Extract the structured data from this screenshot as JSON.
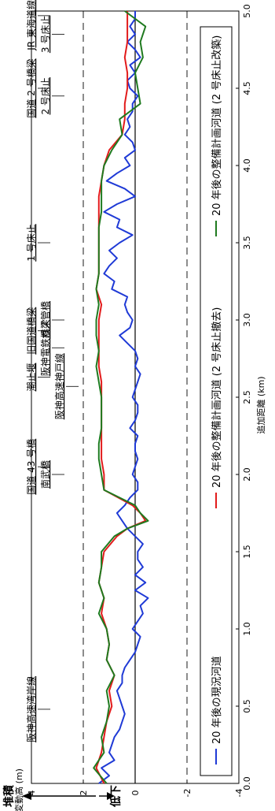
{
  "chart_data": {
    "type": "line",
    "xlabel": "追加距離 (km)",
    "ylabel": "河床変動高 (m)",
    "ylabel_glyphs": [
      "河",
      "床",
      "変",
      "動",
      "高",
      "(m)"
    ],
    "y_top_label": "堆積",
    "y_bottom_label": "低下",
    "xlim": [
      0.0,
      5.0
    ],
    "ylim": [
      -4,
      4
    ],
    "x_ticks": [
      "0.0",
      "0.5",
      "1.0",
      "1.5",
      "2.0",
      "2.5",
      "3.0",
      "3.5",
      "4.0",
      "4.5",
      "5.0"
    ],
    "y_ticks": [
      "4",
      "2",
      "0",
      "-2",
      "-4"
    ],
    "x_tick_values": [
      0,
      0.5,
      1,
      1.5,
      2,
      2.5,
      3,
      3.5,
      4,
      4.5,
      5
    ],
    "y_tick_values": [
      4,
      2,
      0,
      -2,
      -4
    ],
    "dashed_y": [
      2,
      -2
    ],
    "zero_line": 0,
    "colors": {
      "blue": "#1f3ad6",
      "red": "#e21b1b",
      "green": "#1f7a1f"
    },
    "series": [
      {
        "name": "20 年後の現況河道",
        "color": "blue",
        "x": [
          0,
          0.05,
          0.1,
          0.15,
          0.2,
          0.25,
          0.3,
          0.35,
          0.4,
          0.45,
          0.5,
          0.55,
          0.6,
          0.65,
          0.7,
          0.75,
          0.8,
          0.85,
          0.9,
          0.95,
          1.0,
          1.05,
          1.1,
          1.15,
          1.2,
          1.25,
          1.3,
          1.35,
          1.4,
          1.45,
          1.5,
          1.55,
          1.6,
          1.65,
          1.7,
          1.75,
          1.8,
          1.85,
          1.9,
          1.95,
          2.0,
          2.05,
          2.1,
          2.15,
          2.2,
          2.25,
          2.3,
          2.35,
          2.4,
          2.45,
          2.5,
          2.55,
          2.6,
          2.65,
          2.7,
          2.75,
          2.8,
          2.85,
          2.9,
          2.95,
          3.0,
          3.05,
          3.1,
          3.15,
          3.2,
          3.25,
          3.3,
          3.35,
          3.4,
          3.45,
          3.5,
          3.55,
          3.6,
          3.65,
          3.7,
          3.75,
          3.8,
          3.85,
          3.9,
          3.95,
          4.0,
          4.05,
          4.1,
          4.15,
          4.2,
          4.25,
          4.3,
          4.35,
          4.4,
          4.45,
          4.5,
          4.55,
          4.6,
          4.65,
          4.7,
          4.75,
          4.8,
          4.85,
          4.9,
          4.95,
          5.0
        ],
        "y": [
          1.4,
          1.0,
          1.3,
          0.8,
          1.0,
          0.9,
          0.8,
          0.6,
          0.5,
          0.4,
          0.5,
          0.6,
          0.7,
          0.5,
          0.5,
          0.4,
          0.2,
          0.0,
          -0.1,
          -0.2,
          0.1,
          -0.1,
          -0.3,
          -0.2,
          -0.5,
          0.0,
          -0.4,
          0.0,
          -0.3,
          -0.1,
          -0.1,
          -0.3,
          0.0,
          0.3,
          0.5,
          0.7,
          0.4,
          0.2,
          -0.1,
          -0.1,
          0.1,
          0.0,
          -0.1,
          0.0,
          0.0,
          -0.1,
          0.2,
          0.0,
          -0.1,
          -0.1,
          0.1,
          0.0,
          -0.1,
          -0.2,
          0.0,
          -0.1,
          0.0,
          0.3,
          0.6,
          0.2,
          0.1,
          0.3,
          0.4,
          0.3,
          0.9,
          0.8,
          1.2,
          1.0,
          0.7,
          1.0,
          0.6,
          0.1,
          0.7,
          0.6,
          1.2,
          0.7,
          0.0,
          0.4,
          1.1,
          0.7,
          0.2,
          0.4,
          0.0,
          0.1,
          0.4,
          0.2,
          0.3,
          0.1,
          0.1,
          -0.1,
          0.2,
          0.3,
          0.0,
          0.2,
          -0.2,
          0.0,
          0.3,
          0.0,
          0.2,
          0.0,
          0.0
        ]
      },
      {
        "name": "20 年後の整備計画河道 (2 号床止撤去)",
        "color": "red",
        "x": [
          0,
          0.1,
          0.2,
          0.3,
          0.4,
          0.5,
          0.6,
          0.7,
          0.8,
          0.9,
          1.0,
          1.1,
          1.2,
          1.3,
          1.4,
          1.5,
          1.6,
          1.65,
          1.7,
          1.75,
          1.8,
          1.9,
          2.0,
          2.1,
          2.2,
          2.3,
          2.4,
          2.5,
          2.6,
          2.7,
          2.8,
          2.9,
          3.0,
          3.1,
          3.2,
          3.3,
          3.4,
          3.5,
          3.6,
          3.7,
          3.8,
          3.9,
          4.0,
          4.1,
          4.2,
          4.3,
          4.4,
          4.5,
          4.6,
          4.7,
          4.8,
          4.9,
          5.0
        ],
        "y": [
          1.2,
          1.5,
          1.3,
          1.2,
          1.1,
          0.9,
          1.0,
          0.8,
          1.1,
          1.0,
          1.1,
          1.3,
          1.2,
          1.4,
          1.3,
          1.2,
          0.7,
          0.3,
          -0.4,
          -0.2,
          0.1,
          1.2,
          1.2,
          1.3,
          1.3,
          1.3,
          1.3,
          1.3,
          1.3,
          1.4,
          1.4,
          1.4,
          1.4,
          1.3,
          1.5,
          1.4,
          1.4,
          1.4,
          1.4,
          1.4,
          1.4,
          1.3,
          1.2,
          1.0,
          0.5,
          0.4,
          0.4,
          0.3,
          0.3,
          0.4,
          0.3,
          0.3,
          0.3
        ]
      },
      {
        "name": "20 年後の整備計画河道 (2 号床止改築)",
        "color": "green",
        "x": [
          0,
          0.1,
          0.2,
          0.3,
          0.4,
          0.5,
          0.6,
          0.7,
          0.8,
          0.9,
          1.0,
          1.1,
          1.2,
          1.3,
          1.4,
          1.5,
          1.6,
          1.65,
          1.7,
          1.75,
          1.8,
          1.9,
          2.0,
          2.1,
          2.2,
          2.3,
          2.4,
          2.5,
          2.6,
          2.7,
          2.8,
          2.9,
          3.0,
          3.1,
          3.2,
          3.3,
          3.4,
          3.5,
          3.6,
          3.7,
          3.8,
          3.9,
          4.0,
          4.1,
          4.2,
          4.3,
          4.4,
          4.5,
          4.6,
          4.7,
          4.8,
          4.9,
          5.0
        ],
        "y": [
          1.1,
          1.6,
          1.2,
          1.3,
          1.1,
          1.0,
          1.1,
          0.8,
          1.1,
          1.0,
          1.1,
          1.4,
          1.2,
          1.4,
          1.3,
          1.3,
          0.8,
          0.3,
          -0.5,
          -0.2,
          0.0,
          1.2,
          1.3,
          1.4,
          1.4,
          1.3,
          1.3,
          1.3,
          1.4,
          1.5,
          1.4,
          1.5,
          1.5,
          1.4,
          1.5,
          1.4,
          1.4,
          1.4,
          1.4,
          1.3,
          1.3,
          1.3,
          1.2,
          0.9,
          0.5,
          0.6,
          -0.2,
          -0.1,
          0.0,
          -0.3,
          -0.2,
          -0.4,
          0.4
        ]
      }
    ],
    "legend_position": "bottom",
    "annotations": [
      {
        "text": "阪神高速湾岸線",
        "x": 0.48,
        "level": 1
      },
      {
        "text": "国道 43 号橋",
        "x": 2.05,
        "level": 1
      },
      {
        "text": "南武橋",
        "x": 2.0,
        "level": 2
      },
      {
        "text": "阪神高速神戸線",
        "x": 2.57,
        "level": 3
      },
      {
        "text": "潮止堰",
        "x": 2.63,
        "level": 1
      },
      {
        "text": "阪神電鉄橋梁",
        "x": 2.82,
        "level": 2
      },
      {
        "text": "旧国道橋梁",
        "x": 2.93,
        "level": 1
      },
      {
        "text": "ガス管橋",
        "x": 3.0,
        "level": 2
      },
      {
        "text": "1 号床止",
        "x": 3.5,
        "level": 1
      },
      {
        "text": "国道 2 号橋梁",
        "x": 4.5,
        "level": 1
      },
      {
        "text": "2 号床止",
        "x": 4.45,
        "level": 2
      },
      {
        "text": "3 号床止",
        "x": 4.85,
        "level": 2
      },
      {
        "text": "JR 東海道線橋梁",
        "x": 4.97,
        "level": 1
      }
    ]
  }
}
